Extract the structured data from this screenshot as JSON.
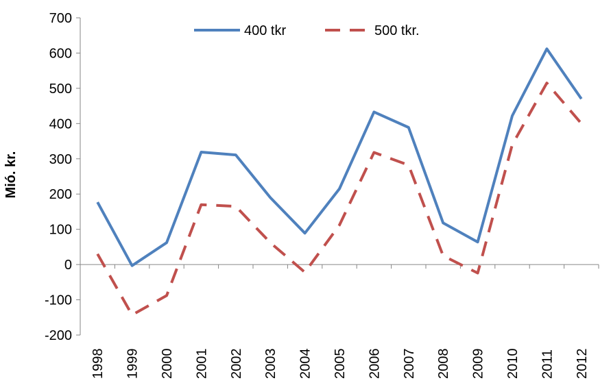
{
  "chart_data": {
    "type": "line",
    "title": "",
    "xlabel": "",
    "ylabel": "Mió. kr.",
    "categories": [
      "1998",
      "1999",
      "2000",
      "2001",
      "2002",
      "2003",
      "2004",
      "2005",
      "2006",
      "2007",
      "2008",
      "2009",
      "2010",
      "2011",
      "2012"
    ],
    "ylim": [
      -200,
      700
    ],
    "yticks": [
      "-200",
      "-100",
      "0",
      "100",
      "200",
      "300",
      "400",
      "500",
      "600",
      "700"
    ],
    "grid": false,
    "legend_position": "top",
    "series": [
      {
        "name": "400 tkr",
        "color": "#4f81bd",
        "style": "solid",
        "values": [
          177,
          -3,
          62,
          319,
          311,
          190,
          89,
          215,
          433,
          389,
          118,
          64,
          422,
          612,
          470
        ]
      },
      {
        "name": "500 tkr.",
        "color": "#c0504d",
        "style": "dashed",
        "values": [
          30,
          -143,
          -88,
          170,
          165,
          62,
          -22,
          112,
          318,
          282,
          25,
          -24,
          340,
          515,
          400
        ]
      }
    ]
  }
}
